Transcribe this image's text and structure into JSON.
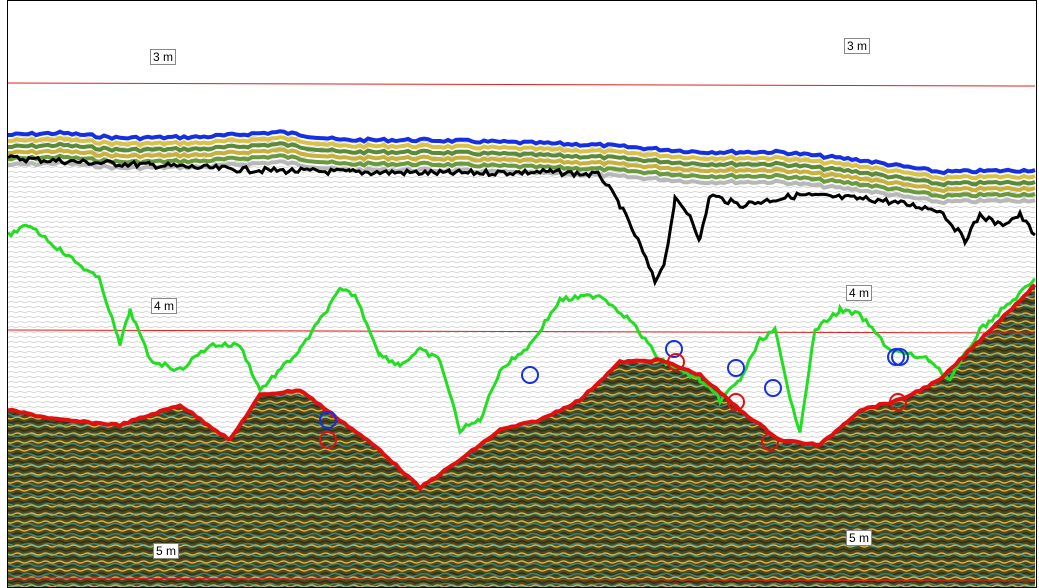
{
  "labels": [
    "3 m",
    "3 m",
    "4 m",
    "4 m",
    "5 m",
    "5 m"
  ]
}
